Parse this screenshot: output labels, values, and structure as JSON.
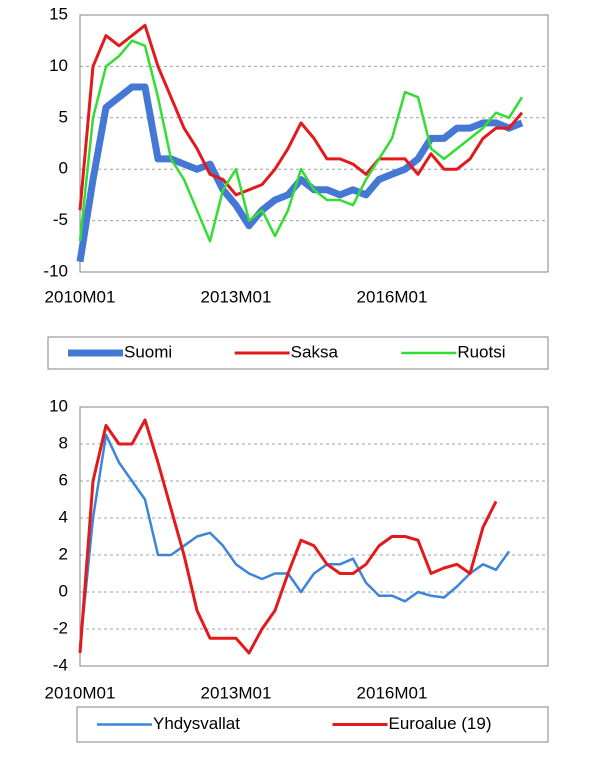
{
  "chart_data": [
    {
      "type": "line",
      "categories": [
        "2010M01",
        null,
        null,
        null,
        null,
        null,
        null,
        null,
        null,
        null,
        null,
        null,
        "2013M01",
        null,
        null,
        null,
        null,
        null,
        null,
        null,
        null,
        null,
        null,
        null,
        "2016M01",
        null,
        null,
        null,
        null,
        null,
        null,
        null,
        null,
        null,
        null,
        null
      ],
      "ylim": [
        -10,
        15
      ],
      "yticks": [
        -10,
        -5,
        0,
        5,
        10,
        15
      ],
      "grid": true,
      "series": [
        {
          "name": "Suomi",
          "color": "#4478d4",
          "width": 7,
          "values": [
            -9,
            -1,
            6,
            7,
            8,
            8,
            1,
            1,
            0.5,
            0,
            0.5,
            -2,
            -3.5,
            -5.5,
            -4,
            -3,
            -2.5,
            -1,
            -2,
            -2,
            -2.5,
            -2,
            -2.5,
            -1,
            -0.5,
            0,
            1,
            3,
            3,
            4,
            4,
            4.5,
            4.5,
            4,
            4.5,
            null
          ]
        },
        {
          "name": "Saksa",
          "color": "#e31a1c",
          "width": 3,
          "values": [
            -4,
            10,
            13,
            12,
            13,
            14,
            10,
            7,
            4,
            2,
            -0.5,
            -1,
            -2.5,
            -2,
            -1.5,
            0,
            2,
            4.5,
            3,
            1,
            1,
            0.5,
            -0.5,
            1,
            1,
            1,
            -0.5,
            1.5,
            0,
            0,
            1,
            3,
            4,
            4,
            5.5,
            null
          ]
        },
        {
          "name": "Ruotsi",
          "color": "#33dd33",
          "width": 2.5,
          "values": [
            -7,
            5,
            10,
            11,
            12.5,
            12,
            7,
            1,
            -1,
            -4,
            -7,
            -2,
            0,
            -5,
            -4,
            -6.5,
            -4,
            0,
            -2,
            -3,
            -3,
            -3.5,
            -1,
            1,
            3,
            7.5,
            7,
            2,
            1,
            2,
            3,
            4,
            5.5,
            5,
            7,
            null
          ]
        }
      ]
    },
    {
      "type": "line",
      "categories": [
        "2010M01",
        null,
        null,
        null,
        null,
        null,
        null,
        null,
        null,
        null,
        null,
        null,
        "2013M01",
        null,
        null,
        null,
        null,
        null,
        null,
        null,
        null,
        null,
        null,
        null,
        "2016M01",
        null,
        null,
        null,
        null,
        null,
        null,
        null,
        null,
        null,
        null,
        null
      ],
      "ylim": [
        -4,
        10
      ],
      "yticks": [
        -4,
        -2,
        0,
        2,
        4,
        6,
        8,
        10
      ],
      "grid": true,
      "series": [
        {
          "name": "Yhdysvallat",
          "color": "#3d85d8",
          "width": 2.5,
          "values": [
            -3,
            4,
            8.5,
            7,
            6,
            5,
            2,
            2,
            2.5,
            3,
            3.2,
            2.5,
            1.5,
            1,
            0.7,
            1,
            1,
            0,
            1,
            1.5,
            1.5,
            1.8,
            0.5,
            -0.2,
            -0.2,
            -0.5,
            0,
            -0.2,
            -0.3,
            0.3,
            1,
            1.5,
            1.2,
            2.2,
            null,
            null
          ]
        },
        {
          "name": "Euroalue (19)",
          "color": "#e31a1c",
          "width": 3,
          "values": [
            -3.3,
            6,
            9,
            8,
            8,
            9.3,
            7,
            4.5,
            2,
            -1,
            -2.5,
            -2.5,
            -2.5,
            -3.3,
            -2,
            -1,
            1,
            2.8,
            2.5,
            1.5,
            1,
            1,
            1.5,
            2.5,
            3,
            3,
            2.8,
            1,
            1.3,
            1.5,
            1,
            3.5,
            4.9,
            null,
            null,
            null
          ]
        }
      ]
    }
  ]
}
